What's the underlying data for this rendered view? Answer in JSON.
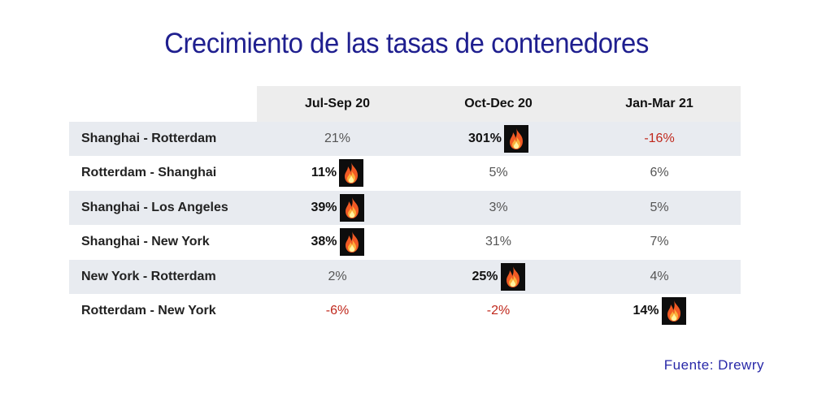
{
  "chart_data": {
    "type": "table",
    "title": "Crecimiento de las tasas de contenedores",
    "columns": [
      "Jul-Sep 20",
      "Oct-Dec 20",
      "Jan-Mar 21"
    ],
    "rows": [
      {
        "route": "Shanghai - Rotterdam",
        "values": [
          "21%",
          "301%",
          "-16%"
        ],
        "values_num": [
          21,
          301,
          -16
        ],
        "hot": [
          false,
          true,
          false
        ]
      },
      {
        "route": "Rotterdam - Shanghai",
        "values": [
          "11%",
          "5%",
          "6%"
        ],
        "values_num": [
          11,
          5,
          6
        ],
        "hot": [
          true,
          false,
          false
        ]
      },
      {
        "route": "Shanghai - Los Angeles",
        "values": [
          "39%",
          "3%",
          "5%"
        ],
        "values_num": [
          39,
          3,
          5
        ],
        "hot": [
          true,
          false,
          false
        ]
      },
      {
        "route": "Shanghai - New York",
        "values": [
          "38%",
          "31%",
          "7%"
        ],
        "values_num": [
          38,
          31,
          7
        ],
        "hot": [
          true,
          false,
          false
        ]
      },
      {
        "route": "New York - Rotterdam",
        "values": [
          "2%",
          "25%",
          "4%"
        ],
        "values_num": [
          2,
          25,
          4
        ],
        "hot": [
          false,
          true,
          false
        ]
      },
      {
        "route": "Rotterdam - New York",
        "values": [
          "-6%",
          "-2%",
          "14%"
        ],
        "values_num": [
          -6,
          -2,
          14
        ],
        "hot": [
          false,
          false,
          true
        ]
      }
    ],
    "source": "Fuente:  Drewry"
  },
  "colors": {
    "title": "#1f1f8f",
    "negative": "#c0281c",
    "header_bg": "#ededed",
    "row_shade": "#e8ebf0",
    "source": "#2828a8"
  },
  "icons": {
    "hot_marker": "fire-icon"
  }
}
